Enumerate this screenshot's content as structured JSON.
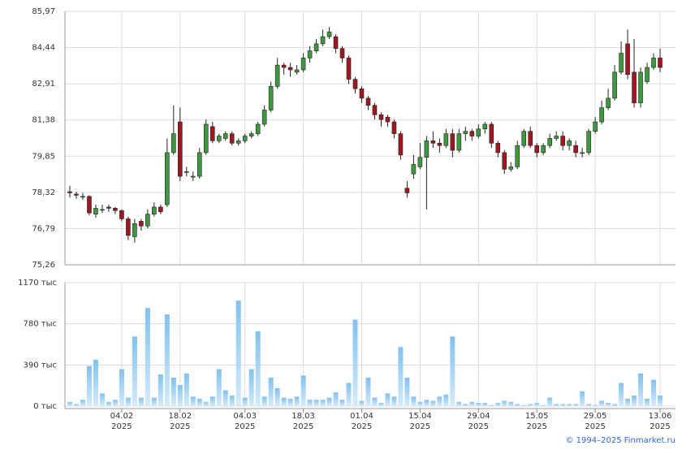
{
  "chart_data": {
    "type": "candlestick",
    "categories": [
      null,
      null,
      null,
      null,
      null,
      null,
      null,
      null,
      "04.02",
      null,
      null,
      null,
      null,
      null,
      null,
      null,
      null,
      "18.02",
      null,
      null,
      null,
      null,
      null,
      null,
      null,
      null,
      null,
      "04.03",
      null,
      null,
      null,
      null,
      null,
      null,
      null,
      null,
      "18.03",
      null,
      null,
      null,
      null,
      null,
      null,
      null,
      null,
      "01.04",
      null,
      null,
      null,
      null,
      null,
      null,
      null,
      null,
      "15.04",
      null,
      null,
      null,
      null,
      null,
      null,
      null,
      null,
      "29.04",
      null,
      null,
      null,
      null,
      null,
      null,
      null,
      null,
      "15.05",
      null,
      null,
      null,
      null,
      null,
      null,
      null,
      null,
      "29.05",
      null,
      null,
      null,
      null,
      null,
      null,
      null,
      null,
      null,
      "13.06"
    ],
    "year": "2025",
    "open": [
      78.35,
      78.25,
      78.15,
      78.15,
      77.4,
      77.6,
      77.7,
      77.65,
      77.55,
      77.2,
      76.45,
      77.1,
      76.9,
      77.4,
      77.7,
      77.8,
      80.0,
      81.3,
      79.2,
      79.0,
      79.0,
      80.0,
      81.1,
      80.5,
      80.6,
      80.8,
      80.4,
      80.5,
      80.7,
      80.8,
      81.2,
      81.8,
      82.8,
      83.7,
      83.6,
      83.4,
      83.5,
      84.0,
      84.3,
      84.6,
      84.9,
      84.9,
      84.4,
      84.0,
      83.1,
      82.7,
      82.3,
      82.0,
      81.6,
      81.5,
      81.3,
      80.8,
      78.5,
      79.1,
      79.4,
      79.8,
      80.5,
      80.4,
      80.3,
      80.8,
      80.1,
      80.8,
      80.9,
      80.7,
      81.0,
      81.2,
      80.4,
      80.0,
      79.3,
      79.4,
      80.3,
      80.9,
      80.3,
      80.0,
      80.3,
      80.6,
      80.7,
      80.3,
      80.3,
      80.0,
      80.0,
      80.9,
      81.3,
      81.9,
      82.3,
      83.4,
      84.6,
      83.4,
      82.1,
      83.0,
      83.6,
      84.0
    ],
    "high": [
      78.6,
      78.35,
      78.3,
      78.2,
      77.8,
      77.8,
      77.8,
      77.7,
      77.6,
      77.3,
      77.2,
      77.2,
      77.6,
      77.9,
      77.8,
      80.6,
      82.0,
      81.9,
      79.4,
      79.2,
      80.2,
      81.4,
      81.3,
      80.8,
      80.9,
      80.9,
      80.6,
      80.8,
      80.9,
      81.3,
      82.0,
      83.0,
      84.0,
      83.8,
      83.8,
      83.7,
      84.2,
      84.5,
      84.8,
      85.2,
      85.3,
      85.0,
      84.5,
      84.1,
      83.2,
      82.8,
      82.4,
      82.1,
      81.7,
      81.6,
      81.4,
      80.9,
      78.8,
      79.9,
      80.4,
      80.7,
      80.9,
      80.6,
      81.0,
      81.0,
      81.0,
      81.1,
      81.0,
      81.2,
      81.3,
      81.3,
      80.5,
      80.1,
      79.6,
      80.5,
      81.0,
      81.1,
      80.4,
      80.4,
      80.8,
      80.9,
      80.9,
      80.6,
      80.5,
      80.2,
      81.0,
      81.5,
      82.2,
      82.7,
      83.7,
      84.7,
      85.2,
      84.8,
      83.6,
      83.8,
      84.2,
      84.4
    ],
    "low": [
      78.1,
      78.05,
      78.0,
      77.35,
      77.25,
      77.45,
      77.5,
      77.4,
      77.1,
      76.3,
      76.2,
      76.7,
      76.8,
      77.3,
      77.4,
      77.7,
      79.9,
      78.8,
      79.0,
      78.8,
      78.9,
      79.9,
      80.4,
      80.4,
      80.5,
      80.3,
      80.3,
      80.4,
      80.6,
      80.7,
      81.1,
      81.7,
      82.7,
      83.3,
      83.2,
      83.3,
      83.4,
      83.8,
      84.2,
      84.5,
      84.8,
      84.2,
      83.8,
      82.9,
      82.5,
      82.1,
      81.8,
      81.4,
      81.1,
      81.1,
      80.6,
      79.7,
      78.1,
      78.9,
      79.3,
      77.6,
      80.2,
      80.0,
      80.2,
      79.8,
      80.0,
      80.5,
      80.5,
      80.6,
      80.8,
      80.2,
      79.8,
      79.1,
      79.2,
      79.3,
      80.2,
      80.2,
      79.8,
      79.9,
      80.2,
      80.5,
      80.1,
      80.1,
      79.8,
      79.8,
      79.9,
      80.8,
      81.2,
      81.8,
      82.2,
      83.3,
      83.1,
      81.9,
      81.9,
      82.9,
      83.5,
      83.4
    ],
    "close": [
      78.3,
      78.2,
      78.15,
      77.45,
      77.65,
      77.6,
      77.65,
      77.55,
      77.2,
      76.5,
      77.0,
      76.9,
      77.4,
      77.7,
      77.5,
      80.0,
      80.8,
      79.0,
      79.2,
      79.0,
      80.0,
      81.2,
      80.5,
      80.7,
      80.8,
      80.4,
      80.5,
      80.7,
      80.8,
      81.2,
      81.8,
      82.8,
      83.7,
      83.6,
      83.5,
      83.5,
      84.0,
      84.3,
      84.6,
      84.9,
      85.1,
      84.4,
      84.0,
      83.1,
      82.7,
      82.3,
      82.0,
      81.6,
      81.4,
      81.3,
      80.8,
      79.9,
      78.3,
      79.5,
      79.8,
      80.5,
      80.4,
      80.3,
      80.8,
      80.1,
      80.8,
      80.9,
      80.7,
      81.0,
      81.2,
      80.4,
      80.0,
      79.3,
      79.4,
      80.3,
      80.9,
      80.3,
      80.0,
      80.3,
      80.6,
      80.7,
      80.3,
      80.5,
      80.0,
      80.0,
      80.9,
      81.3,
      81.9,
      82.3,
      83.4,
      84.2,
      83.3,
      82.1,
      83.4,
      83.6,
      84.0,
      83.6
    ],
    "volume": [
      40,
      20,
      60,
      380,
      440,
      120,
      40,
      60,
      350,
      80,
      660,
      80,
      930,
      80,
      300,
      870,
      270,
      200,
      310,
      90,
      70,
      40,
      90,
      350,
      150,
      100,
      1000,
      80,
      350,
      710,
      90,
      270,
      170,
      80,
      70,
      90,
      290,
      60,
      60,
      60,
      80,
      130,
      60,
      220,
      820,
      50,
      270,
      80,
      30,
      120,
      90,
      560,
      270,
      90,
      40,
      60,
      50,
      90,
      110,
      660,
      40,
      20,
      40,
      30,
      30,
      10,
      30,
      50,
      40,
      20,
      10,
      20,
      30,
      10,
      80,
      20,
      20,
      20,
      20,
      140,
      20,
      10,
      50,
      30,
      20,
      220,
      70,
      100,
      310,
      70,
      250,
      100
    ],
    "up_color": "#3c9a3c",
    "down_color": "#a3161f",
    "ylim": [
      75.26,
      85.97
    ],
    "yticks": [
      {
        "value": 75.26,
        "label": "75,26"
      },
      {
        "value": 76.79,
        "label": "76,79"
      },
      {
        "value": 78.32,
        "label": "78,32"
      },
      {
        "value": 79.85,
        "label": "79,85"
      },
      {
        "value": 81.38,
        "label": "81,38"
      },
      {
        "value": 82.91,
        "label": "82,91"
      },
      {
        "value": 84.44,
        "label": "84,44"
      },
      {
        "value": 85.97,
        "label": "85,97"
      }
    ],
    "volume_lim": [
      0,
      1170
    ],
    "volume_ticks": [
      {
        "value": 0,
        "label": "0 тыс"
      },
      {
        "value": 390,
        "label": "390 тыс"
      },
      {
        "value": 780,
        "label": "780 тыс"
      },
      {
        "value": 1170,
        "label": "1170 тыс"
      }
    ],
    "grid": true
  },
  "footer": "© 1994–2025 Finmarket.ru"
}
